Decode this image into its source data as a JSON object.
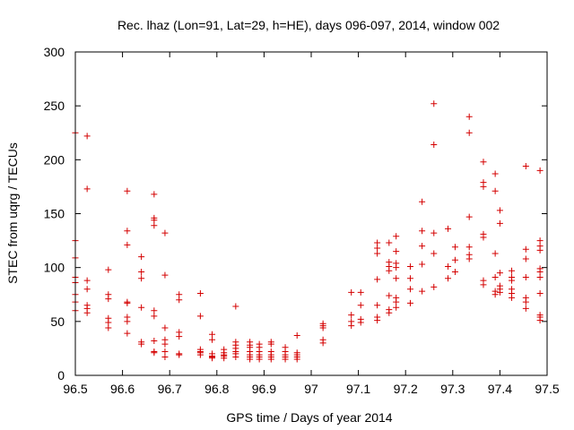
{
  "chart_data": {
    "type": "scatter",
    "title": "Rec. lhaz (Lon=91, Lat=29, h=HE), days 096-097, 2014, window 002",
    "xlabel": "GPS time / Days of year 2014",
    "ylabel": "STEC from uqrg / TECUs",
    "xlim": [
      96.5,
      97.5
    ],
    "ylim": [
      0,
      300
    ],
    "xticks": [
      96.5,
      96.6,
      96.7,
      96.8,
      96.9,
      97.0,
      97.1,
      97.2,
      97.3,
      97.4,
      97.5
    ],
    "xtick_labels": [
      "96.5",
      "96.6",
      "96.7",
      "96.8",
      "96.9",
      "97",
      "97.1",
      "97.2",
      "97.3",
      "97.4",
      "97.5"
    ],
    "yticks": [
      0,
      50,
      100,
      150,
      200,
      250,
      300
    ],
    "ytick_labels": [
      "0",
      "50",
      "100",
      "150",
      "200",
      "250",
      "300"
    ],
    "grid": false,
    "marker": "plus",
    "colors": {
      "series": "#d40000"
    },
    "series": [
      {
        "points": [
          [
            96.5,
            225
          ],
          [
            96.5,
            125
          ],
          [
            96.5,
            109
          ],
          [
            96.5,
            91
          ],
          [
            96.5,
            86
          ],
          [
            96.5,
            75
          ],
          [
            96.5,
            68
          ],
          [
            96.5,
            60
          ],
          [
            96.525,
            222
          ],
          [
            96.525,
            173
          ],
          [
            96.525,
            88
          ],
          [
            96.525,
            80
          ],
          [
            96.525,
            65
          ],
          [
            96.525,
            62
          ],
          [
            96.525,
            58
          ],
          [
            96.57,
            98
          ],
          [
            96.57,
            75
          ],
          [
            96.57,
            71
          ],
          [
            96.57,
            53
          ],
          [
            96.57,
            49
          ],
          [
            96.57,
            44
          ],
          [
            96.61,
            171
          ],
          [
            96.61,
            134
          ],
          [
            96.61,
            121
          ],
          [
            96.61,
            68
          ],
          [
            96.61,
            67
          ],
          [
            96.61,
            54
          ],
          [
            96.61,
            50
          ],
          [
            96.61,
            39
          ],
          [
            96.64,
            110
          ],
          [
            96.64,
            96
          ],
          [
            96.64,
            90
          ],
          [
            96.64,
            63
          ],
          [
            96.64,
            31
          ],
          [
            96.64,
            29
          ],
          [
            96.667,
            168
          ],
          [
            96.667,
            146
          ],
          [
            96.667,
            144
          ],
          [
            96.667,
            139
          ],
          [
            96.667,
            60
          ],
          [
            96.667,
            55
          ],
          [
            96.667,
            32
          ],
          [
            96.667,
            22
          ],
          [
            96.667,
            21
          ],
          [
            96.69,
            132
          ],
          [
            96.69,
            93
          ],
          [
            96.69,
            44
          ],
          [
            96.69,
            33
          ],
          [
            96.69,
            29
          ],
          [
            96.69,
            22
          ],
          [
            96.69,
            17
          ],
          [
            96.72,
            75
          ],
          [
            96.72,
            70
          ],
          [
            96.72,
            40
          ],
          [
            96.72,
            36
          ],
          [
            96.72,
            20
          ],
          [
            96.72,
            19
          ],
          [
            96.765,
            76
          ],
          [
            96.765,
            55
          ],
          [
            96.765,
            24
          ],
          [
            96.765,
            22
          ],
          [
            96.765,
            21
          ],
          [
            96.765,
            19
          ],
          [
            96.79,
            38
          ],
          [
            96.79,
            33
          ],
          [
            96.79,
            20
          ],
          [
            96.79,
            18
          ],
          [
            96.79,
            17
          ],
          [
            96.79,
            16
          ],
          [
            96.815,
            24
          ],
          [
            96.815,
            21
          ],
          [
            96.815,
            19
          ],
          [
            96.815,
            18
          ],
          [
            96.815,
            16
          ],
          [
            96.84,
            64
          ],
          [
            96.84,
            31
          ],
          [
            96.84,
            28
          ],
          [
            96.84,
            25
          ],
          [
            96.84,
            22
          ],
          [
            96.84,
            20
          ],
          [
            96.84,
            17
          ],
          [
            96.87,
            31
          ],
          [
            96.87,
            28
          ],
          [
            96.87,
            26
          ],
          [
            96.87,
            22
          ],
          [
            96.87,
            19
          ],
          [
            96.87,
            17
          ],
          [
            96.87,
            15
          ],
          [
            96.89,
            29
          ],
          [
            96.89,
            26
          ],
          [
            96.89,
            22
          ],
          [
            96.89,
            19
          ],
          [
            96.89,
            17
          ],
          [
            96.89,
            15
          ],
          [
            96.915,
            31
          ],
          [
            96.915,
            29
          ],
          [
            96.915,
            22
          ],
          [
            96.915,
            19
          ],
          [
            96.915,
            17
          ],
          [
            96.915,
            15
          ],
          [
            96.945,
            26
          ],
          [
            96.945,
            22
          ],
          [
            96.945,
            19
          ],
          [
            96.945,
            17
          ],
          [
            96.945,
            15
          ],
          [
            96.97,
            37
          ],
          [
            96.97,
            21
          ],
          [
            96.97,
            19
          ],
          [
            96.97,
            17
          ],
          [
            96.97,
            15
          ],
          [
            97.025,
            48
          ],
          [
            97.025,
            46
          ],
          [
            97.025,
            44
          ],
          [
            97.025,
            33
          ],
          [
            97.025,
            30
          ],
          [
            97.085,
            77
          ],
          [
            97.085,
            56
          ],
          [
            97.085,
            50
          ],
          [
            97.085,
            46
          ],
          [
            97.105,
            77
          ],
          [
            97.105,
            65
          ],
          [
            97.105,
            52
          ],
          [
            97.105,
            49
          ],
          [
            97.14,
            123
          ],
          [
            97.14,
            118
          ],
          [
            97.14,
            113
          ],
          [
            97.14,
            89
          ],
          [
            97.14,
            65
          ],
          [
            97.14,
            54
          ],
          [
            97.14,
            51
          ],
          [
            97.165,
            123
          ],
          [
            97.165,
            105
          ],
          [
            97.165,
            101
          ],
          [
            97.165,
            97
          ],
          [
            97.165,
            74
          ],
          [
            97.165,
            61
          ],
          [
            97.165,
            58
          ],
          [
            97.18,
            129
          ],
          [
            97.18,
            115
          ],
          [
            97.18,
            104
          ],
          [
            97.18,
            100
          ],
          [
            97.18,
            90
          ],
          [
            97.18,
            72
          ],
          [
            97.18,
            68
          ],
          [
            97.18,
            63
          ],
          [
            97.21,
            101
          ],
          [
            97.21,
            90
          ],
          [
            97.21,
            80
          ],
          [
            97.21,
            67
          ],
          [
            97.235,
            161
          ],
          [
            97.235,
            134
          ],
          [
            97.235,
            120
          ],
          [
            97.235,
            103
          ],
          [
            97.235,
            78
          ],
          [
            97.26,
            252
          ],
          [
            97.26,
            214
          ],
          [
            97.26,
            132
          ],
          [
            97.26,
            113
          ],
          [
            97.26,
            82
          ],
          [
            97.29,
            136
          ],
          [
            97.29,
            101
          ],
          [
            97.29,
            90
          ],
          [
            97.305,
            119
          ],
          [
            97.305,
            107
          ],
          [
            97.305,
            96
          ],
          [
            97.335,
            240
          ],
          [
            97.335,
            225
          ],
          [
            97.335,
            147
          ],
          [
            97.335,
            119
          ],
          [
            97.335,
            112
          ],
          [
            97.335,
            108
          ],
          [
            97.365,
            198
          ],
          [
            97.365,
            179
          ],
          [
            97.365,
            175
          ],
          [
            97.365,
            131
          ],
          [
            97.365,
            128
          ],
          [
            97.365,
            88
          ],
          [
            97.365,
            84
          ],
          [
            97.39,
            187
          ],
          [
            97.39,
            171
          ],
          [
            97.39,
            113
          ],
          [
            97.39,
            91
          ],
          [
            97.39,
            78
          ],
          [
            97.39,
            75
          ],
          [
            97.4,
            153
          ],
          [
            97.4,
            141
          ],
          [
            97.4,
            95
          ],
          [
            97.4,
            83
          ],
          [
            97.4,
            80
          ],
          [
            97.4,
            77
          ],
          [
            97.425,
            97
          ],
          [
            97.425,
            91
          ],
          [
            97.425,
            88
          ],
          [
            97.425,
            80
          ],
          [
            97.425,
            76
          ],
          [
            97.425,
            72
          ],
          [
            97.455,
            194
          ],
          [
            97.455,
            117
          ],
          [
            97.455,
            108
          ],
          [
            97.455,
            91
          ],
          [
            97.455,
            72
          ],
          [
            97.455,
            68
          ],
          [
            97.455,
            62
          ],
          [
            97.485,
            190
          ],
          [
            97.485,
            125
          ],
          [
            97.485,
            120
          ],
          [
            97.485,
            116
          ],
          [
            97.485,
            99
          ],
          [
            97.485,
            96
          ],
          [
            97.485,
            91
          ],
          [
            97.485,
            76
          ],
          [
            97.485,
            56
          ],
          [
            97.485,
            54
          ],
          [
            97.485,
            51
          ]
        ]
      }
    ]
  }
}
